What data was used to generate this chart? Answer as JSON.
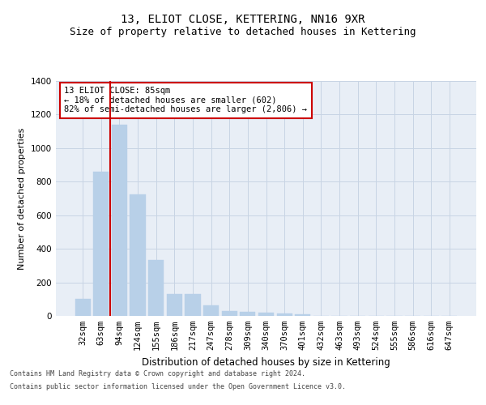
{
  "title": "13, ELIOT CLOSE, KETTERING, NN16 9XR",
  "subtitle": "Size of property relative to detached houses in Kettering",
  "xlabel": "Distribution of detached houses by size in Kettering",
  "ylabel": "Number of detached properties",
  "categories": [
    "32sqm",
    "63sqm",
    "94sqm",
    "124sqm",
    "155sqm",
    "186sqm",
    "217sqm",
    "247sqm",
    "278sqm",
    "309sqm",
    "340sqm",
    "370sqm",
    "401sqm",
    "432sqm",
    "463sqm",
    "493sqm",
    "524sqm",
    "555sqm",
    "586sqm",
    "616sqm",
    "647sqm"
  ],
  "values": [
    100,
    860,
    1140,
    725,
    335,
    130,
    130,
    65,
    30,
    25,
    20,
    15,
    10,
    0,
    0,
    0,
    0,
    0,
    0,
    0,
    0
  ],
  "bar_color": "#b8d0e8",
  "bar_edge_color": "#b8d0e8",
  "grid_color": "#c8d4e4",
  "background_color": "#e8eef6",
  "vline_color": "#cc0000",
  "annotation_text": "13 ELIOT CLOSE: 85sqm\n← 18% of detached houses are smaller (602)\n82% of semi-detached houses are larger (2,806) →",
  "annotation_box_color": "#cc0000",
  "ylim": [
    0,
    1400
  ],
  "yticks": [
    0,
    200,
    400,
    600,
    800,
    1000,
    1200,
    1400
  ],
  "footer_line1": "Contains HM Land Registry data © Crown copyright and database right 2024.",
  "footer_line2": "Contains public sector information licensed under the Open Government Licence v3.0.",
  "title_fontsize": 10,
  "subtitle_fontsize": 9,
  "tick_fontsize": 7.5,
  "ylabel_fontsize": 8,
  "xlabel_fontsize": 8.5
}
